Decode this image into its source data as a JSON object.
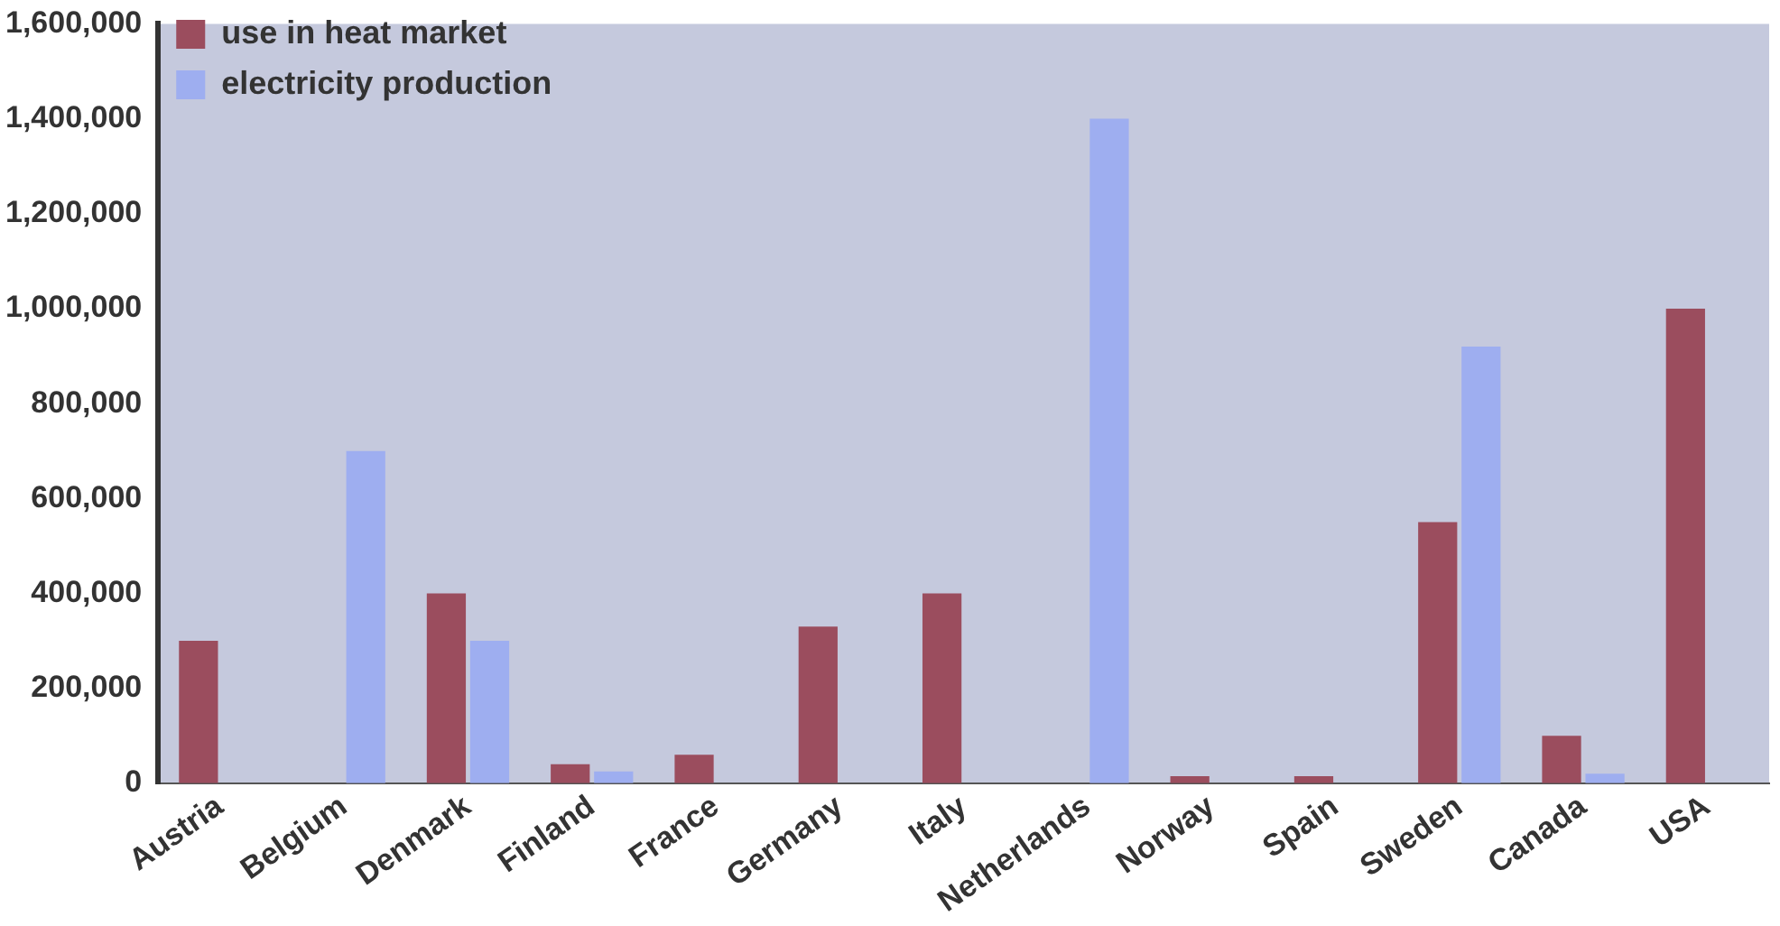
{
  "chart_data": {
    "type": "bar",
    "categories": [
      "Austria",
      "Belgium",
      "Denmark",
      "Finland",
      "France",
      "Germany",
      "Italy",
      "Netherlands",
      "Norway",
      "Spain",
      "Sweden",
      "Canada",
      "USA"
    ],
    "series": [
      {
        "name": "use in heat market",
        "color": "#9b4d5e",
        "values": [
          300000,
          null,
          400000,
          40000,
          60000,
          330000,
          400000,
          null,
          15000,
          15000,
          550000,
          100000,
          1000000
        ]
      },
      {
        "name": "electricity production",
        "color": "#9eaef0",
        "values": [
          null,
          700000,
          300000,
          25000,
          null,
          null,
          null,
          1400000,
          null,
          null,
          920000,
          20000,
          null
        ]
      }
    ],
    "ylim": [
      0,
      1600000
    ],
    "yticks": [
      {
        "value": 0,
        "label": "0"
      },
      {
        "value": 200000,
        "label": "200,000"
      },
      {
        "value": 400000,
        "label": "400,000"
      },
      {
        "value": 600000,
        "label": "600,000"
      },
      {
        "value": 800000,
        "label": "800,000"
      },
      {
        "value": 1000000,
        "label": "1,000,000"
      },
      {
        "value": 1200000,
        "label": "1,200,000"
      },
      {
        "value": 1400000,
        "label": "1,400,000"
      },
      {
        "value": 1600000,
        "label": "1,600,000"
      }
    ],
    "grid": false,
    "legend": "top left"
  }
}
